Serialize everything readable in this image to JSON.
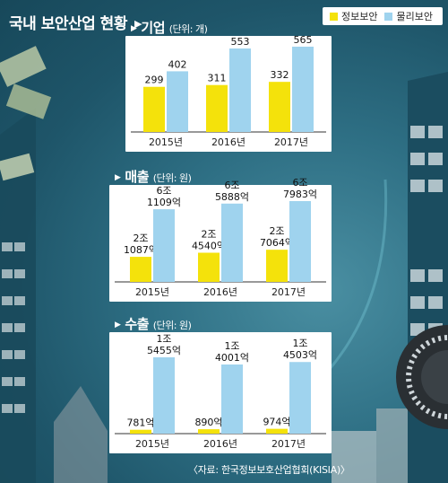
{
  "title": "국내 보안산업 현황",
  "legend": {
    "items": [
      {
        "label": "정보보안",
        "color": "#f4e20b"
      },
      {
        "label": "물리보안",
        "color": "#9fd3ee"
      }
    ]
  },
  "source": "〈자료: 한국정보보호산업협회(KISIA)〉",
  "chart_data": [
    {
      "type": "bar",
      "title": "기업",
      "unit": "(단위: 개)",
      "categories": [
        "2015년",
        "2016년",
        "2017년"
      ],
      "series": [
        {
          "name": "정보보안",
          "values": [
            299,
            311,
            332
          ],
          "labels": [
            "299",
            "311",
            "332"
          ]
        },
        {
          "name": "물리보안",
          "values": [
            402,
            553,
            565
          ],
          "labels": [
            "402",
            "553",
            "565"
          ]
        }
      ]
    },
    {
      "type": "bar",
      "title": "매출",
      "unit": "(단위: 원)",
      "categories": [
        "2015년",
        "2016년",
        "2017년"
      ],
      "series": [
        {
          "name": "정보보안",
          "values": [
            21087,
            24540,
            27064
          ],
          "labels": [
            "2조\n1087억",
            "2조\n4540억",
            "2조\n7064억"
          ]
        },
        {
          "name": "물리보안",
          "values": [
            61109,
            65888,
            67983
          ],
          "labels": [
            "6조\n1109억",
            "6조\n5888억",
            "6조\n7983억"
          ]
        }
      ]
    },
    {
      "type": "bar",
      "title": "수출",
      "unit": "(단위: 원)",
      "categories": [
        "2015년",
        "2016년",
        "2017년"
      ],
      "series": [
        {
          "name": "정보보안",
          "values": [
            781,
            890,
            974
          ],
          "labels": [
            "781억",
            "890억",
            "974억"
          ]
        },
        {
          "name": "물리보안",
          "values": [
            15455,
            14001,
            14503
          ],
          "labels": [
            "1조\n5455억",
            "1조\n4001억",
            "1조\n4503억"
          ]
        }
      ]
    }
  ]
}
